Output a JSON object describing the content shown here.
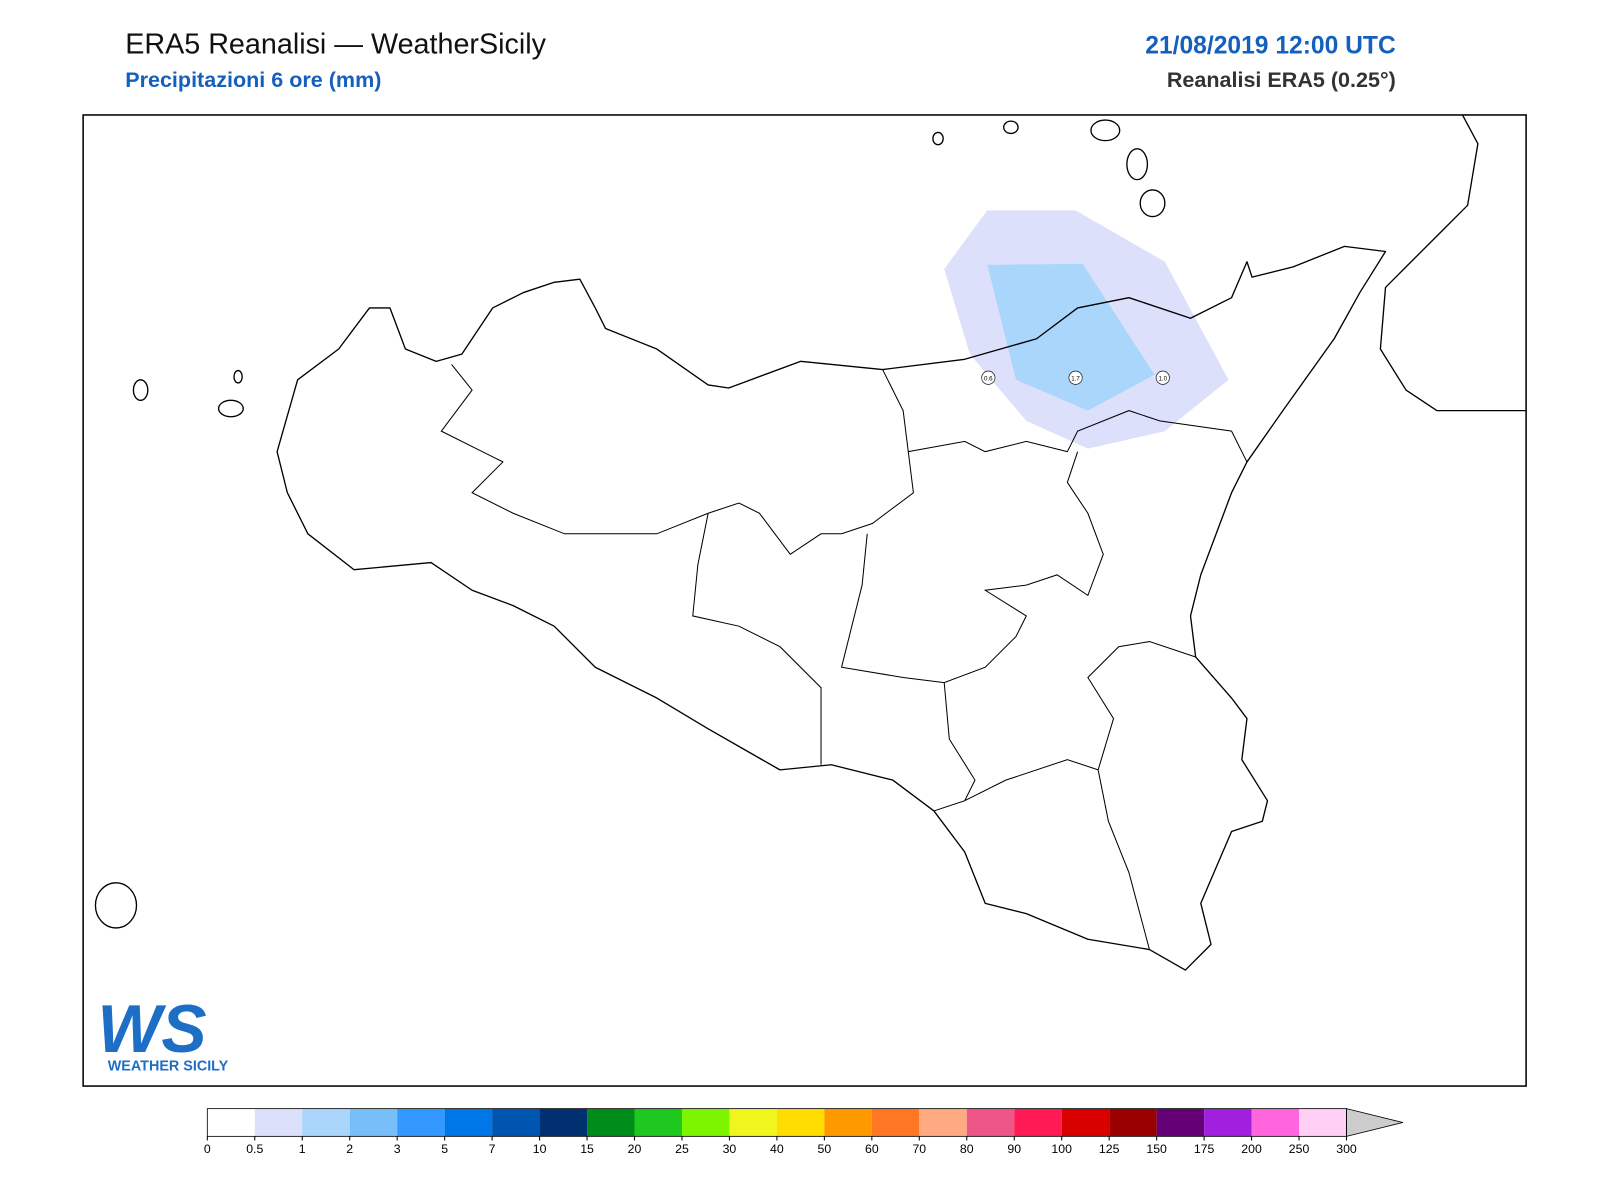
{
  "header": {
    "title": "ERA5 Reanalisi — WeatherSicily",
    "subtitle": "Precipitazioni 6 ore (mm)",
    "datetime": "21/08/2019 12:00 UTC",
    "model": "Reanalisi ERA5 (0.25°)"
  },
  "stations": [
    "0.6",
    "1.7",
    "1.0"
  ],
  "logo": {
    "mark": "WS",
    "name": "WEATHER SICILY"
  },
  "colorbar": {
    "ticks": [
      0,
      0.5,
      1,
      2,
      3,
      5,
      7,
      10,
      15,
      20,
      25,
      30,
      40,
      50,
      60,
      70,
      80,
      90,
      100,
      125,
      150,
      175,
      200,
      250,
      300
    ],
    "colors": [
      "#ffffff",
      "#dde0fb",
      "#aad6fb",
      "#78bffa",
      "#3399ff",
      "#0077e6",
      "#0055b0",
      "#003070",
      "#008c1a",
      "#1ec81e",
      "#7df500",
      "#f0f51e",
      "#ffdd00",
      "#ff9900",
      "#ff7722",
      "#ffaa80",
      "#ee5588",
      "#ff1a55",
      "#d90000",
      "#990000",
      "#660077",
      "#a020dd",
      "#ff66dd",
      "#ffcff5"
    ],
    "extend_color": "#cccccc"
  }
}
